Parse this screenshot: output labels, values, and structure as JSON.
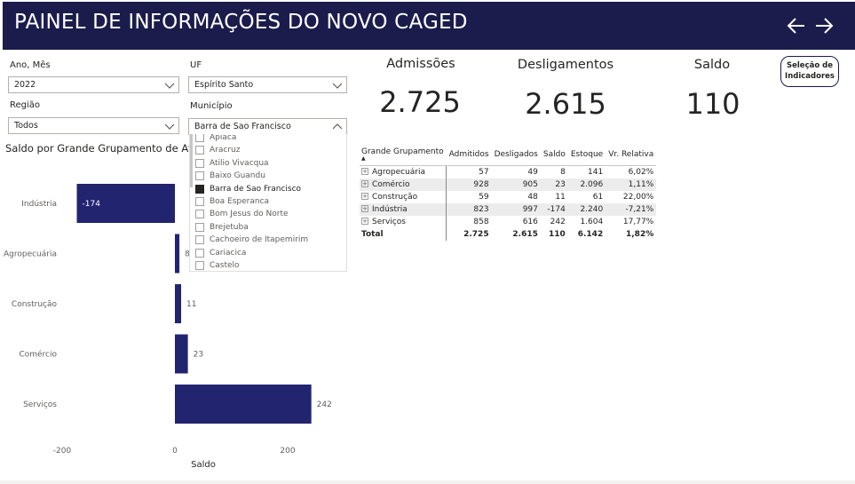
{
  "header": {
    "title": "PAINEL DE INFORMAÇÕES DO NOVO CAGED",
    "back_icon": "arrow-left-icon",
    "forward_icon": "arrow-right-icon"
  },
  "filters": {
    "ano_mes": {
      "label": "Ano, Mês",
      "value": "2022"
    },
    "uf": {
      "label": "UF",
      "value": "Espírito Santo"
    },
    "regiao": {
      "label": "Região",
      "value": "Todos"
    },
    "municipio": {
      "label": "Município",
      "value": "Barra de Sao Francisco",
      "options": [
        {
          "label": "Apiaca",
          "checked": false
        },
        {
          "label": "Aracruz",
          "checked": false
        },
        {
          "label": "Atilio Vivacqua",
          "checked": false
        },
        {
          "label": "Baixo Guandu",
          "checked": false
        },
        {
          "label": "Barra de Sao Francisco",
          "checked": true
        },
        {
          "label": "Boa Esperanca",
          "checked": false
        },
        {
          "label": "Bom Jesus do Norte",
          "checked": false
        },
        {
          "label": "Brejetuba",
          "checked": false
        },
        {
          "label": "Cachoeiro de Itapemirim",
          "checked": false
        },
        {
          "label": "Cariacica",
          "checked": false
        },
        {
          "label": "Castelo",
          "checked": false
        }
      ]
    }
  },
  "kpis": {
    "admissoes": {
      "label": "Admissões",
      "value": "2.725"
    },
    "desligamentos": {
      "label": "Desligamentos",
      "value": "2.615"
    },
    "saldo": {
      "label": "Saldo",
      "value": "110"
    }
  },
  "indicadores_button": {
    "line1": "Seleção de",
    "line2": "Indicadores"
  },
  "chart_title": "Saldo por Grande Grupamento de Ati",
  "chart_data": {
    "type": "bar",
    "orientation": "horizontal",
    "categories": [
      "Indústria",
      "Agropecuária",
      "Construção",
      "Comércio",
      "Serviços"
    ],
    "values": [
      -174,
      8,
      11,
      23,
      242
    ],
    "value_labels": [
      "-174",
      "8",
      "11",
      "23",
      "242"
    ],
    "xlabel": "Saldo",
    "xlim": [
      -200,
      270
    ],
    "xticks": [
      -200,
      0,
      200
    ],
    "xtick_labels": [
      "-200",
      "0",
      "200"
    ],
    "bar_color": "#222470"
  },
  "matrix": {
    "headers": [
      "Grande Grupamento",
      "Admitidos",
      "Desligados",
      "Saldo",
      "Estoque",
      "Vr. Relativa"
    ],
    "expander": "⊞",
    "sort_indicator": "▲",
    "rows": [
      {
        "name": "Agropecuária",
        "cells": [
          "57",
          "49",
          "8",
          "141",
          "6,02%"
        ]
      },
      {
        "name": "Comércio",
        "cells": [
          "928",
          "905",
          "23",
          "2.096",
          "1,11%"
        ]
      },
      {
        "name": "Construção",
        "cells": [
          "59",
          "48",
          "11",
          "61",
          "22,00%"
        ]
      },
      {
        "name": "Indústria",
        "cells": [
          "823",
          "997",
          "-174",
          "2.240",
          "-7,21%"
        ]
      },
      {
        "name": "Serviços",
        "cells": [
          "858",
          "616",
          "242",
          "1.604",
          "17,77%"
        ]
      }
    ],
    "total": {
      "name": "Total",
      "cells": [
        "2.725",
        "2.615",
        "110",
        "6.142",
        "1,82%"
      ]
    }
  },
  "colors": {
    "header_bg": "#1b1c4c",
    "bar": "#222470",
    "row_alt": "#ececec"
  }
}
